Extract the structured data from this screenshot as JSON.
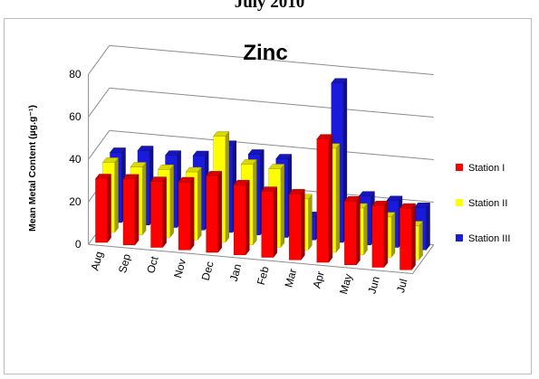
{
  "header": {
    "text": "July 2010"
  },
  "chart_data": {
    "type": "bar",
    "title": "Zinc",
    "xlabel": "",
    "ylabel": "Mean Metal Content (µg.g⁻¹)",
    "ylim": [
      0,
      80
    ],
    "yticks": [
      "0",
      "20",
      "40",
      "60",
      "80"
    ],
    "grid": true,
    "legend_position": "right",
    "categories": [
      "Aug",
      "Sep",
      "Oct",
      "Nov",
      "Dec",
      "Jan",
      "Feb",
      "Mar",
      "Apr",
      "May",
      "Jun",
      "Jul"
    ],
    "series": [
      {
        "name": "Station I",
        "color": "#ff0000",
        "values": [
          30,
          31,
          31,
          32,
          36,
          33,
          31,
          31,
          58,
          30,
          29,
          29
        ]
      },
      {
        "name": "Station II",
        "color": "#ffff00",
        "values": [
          33,
          32,
          32,
          32,
          50,
          38,
          37,
          24,
          49,
          22,
          19,
          16
        ]
      },
      {
        "name": "Station III",
        "color": "#1a1adc",
        "values": [
          33,
          35,
          34,
          35,
          41,
          38,
          37,
          11,
          75,
          23,
          22,
          20
        ]
      }
    ]
  }
}
